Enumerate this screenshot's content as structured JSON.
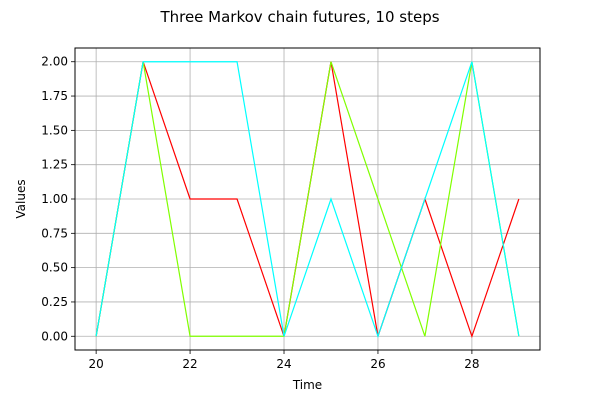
{
  "chart_data": {
    "type": "line",
    "title": "Three Markov chain futures, 10 steps",
    "xlabel": "Time",
    "ylabel": "Values",
    "x": [
      20,
      21,
      22,
      23,
      24,
      25,
      26,
      27,
      28,
      29
    ],
    "xlim": [
      19.55,
      29.45
    ],
    "ylim": [
      -0.1,
      2.1
    ],
    "xticks": [
      "20",
      "22",
      "24",
      "26",
      "28"
    ],
    "yticks": [
      "0.00",
      "0.25",
      "0.50",
      "0.75",
      "1.00",
      "1.25",
      "1.50",
      "1.75",
      "2.00"
    ],
    "grid": true,
    "series": [
      {
        "color": "#ff0000",
        "values": [
          0,
          2,
          1,
          1,
          0,
          2,
          0,
          1,
          0,
          1
        ]
      },
      {
        "color": "#80ff00",
        "values": [
          0,
          2,
          0,
          0,
          0,
          2,
          1,
          0,
          2,
          0
        ]
      },
      {
        "color": "#00ffff",
        "values": [
          0,
          2,
          2,
          2,
          0,
          1,
          0,
          1,
          2,
          0
        ]
      }
    ]
  }
}
